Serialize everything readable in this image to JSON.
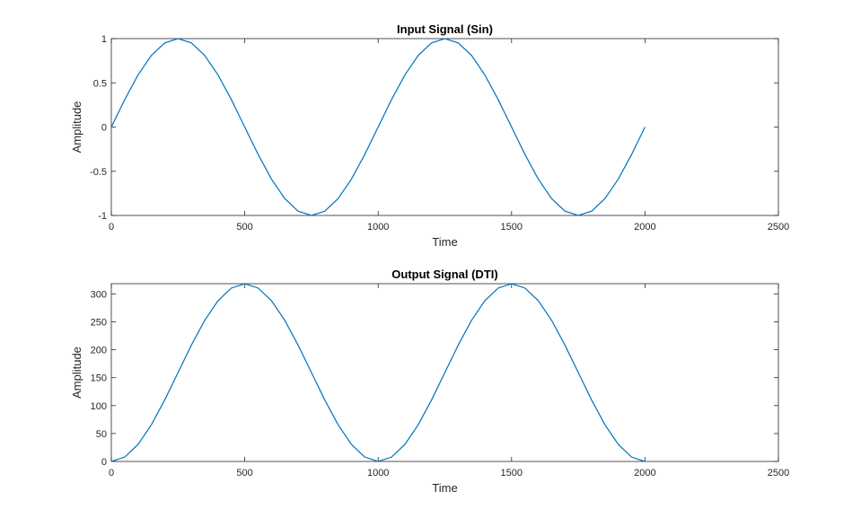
{
  "chart_data": [
    {
      "type": "line",
      "title": "Input Signal (Sin)",
      "xlabel": "Time",
      "ylabel": "Amplitude",
      "color": "#0072bd",
      "x": [
        0,
        50,
        100,
        150,
        200,
        250,
        300,
        350,
        400,
        450,
        500,
        550,
        600,
        650,
        700,
        750,
        800,
        850,
        900,
        950,
        1000,
        1050,
        1100,
        1150,
        1200,
        1250,
        1300,
        1350,
        1400,
        1450,
        1500,
        1550,
        1600,
        1650,
        1700,
        1750,
        1800,
        1850,
        1900,
        1950,
        2000
      ],
      "values": [
        0,
        0.309,
        0.588,
        0.809,
        0.951,
        1,
        0.951,
        0.809,
        0.588,
        0.309,
        0,
        -0.309,
        -0.588,
        -0.809,
        -0.951,
        -1,
        -0.951,
        -0.809,
        -0.588,
        -0.309,
        0,
        0.309,
        0.588,
        0.809,
        0.951,
        1,
        0.951,
        0.809,
        0.588,
        0.309,
        0,
        -0.309,
        -0.588,
        -0.809,
        -0.951,
        -1,
        -0.951,
        -0.809,
        -0.588,
        -0.309,
        0
      ],
      "xlim": [
        0,
        2500
      ],
      "xticks": [
        0,
        500,
        1000,
        1500,
        2000,
        2500
      ],
      "ylim": [
        -1,
        1
      ],
      "yticks": [
        -1,
        -0.5,
        0,
        0.5,
        1
      ]
    },
    {
      "type": "line",
      "title": "Output Signal (DTI)",
      "xlabel": "Time",
      "ylabel": "Amplitude",
      "color": "#0072bd",
      "x": [
        0,
        50,
        100,
        150,
        200,
        250,
        300,
        350,
        400,
        450,
        500,
        550,
        600,
        650,
        700,
        750,
        800,
        850,
        900,
        950,
        1000,
        1050,
        1100,
        1150,
        1200,
        1250,
        1300,
        1350,
        1400,
        1450,
        1500,
        1550,
        1600,
        1650,
        1700,
        1750,
        1800,
        1850,
        1900,
        1950,
        2000
      ],
      "values": [
        0,
        7.8,
        30.4,
        65.6,
        110.0,
        159.2,
        208.3,
        252.7,
        287.9,
        310.5,
        318.3,
        310.5,
        287.9,
        252.7,
        208.3,
        159.2,
        110.0,
        65.6,
        30.4,
        7.8,
        0,
        7.8,
        30.4,
        65.6,
        110.0,
        159.2,
        208.3,
        252.7,
        287.9,
        310.5,
        318.3,
        310.5,
        287.9,
        252.7,
        208.3,
        159.2,
        110.0,
        65.6,
        30.4,
        7.8,
        0
      ],
      "xlim": [
        0,
        2500
      ],
      "xticks": [
        0,
        500,
        1000,
        1500,
        2000,
        2500
      ],
      "ylim": [
        0,
        318.3
      ],
      "yticks": [
        0,
        50,
        100,
        150,
        200,
        250,
        300
      ]
    }
  ]
}
